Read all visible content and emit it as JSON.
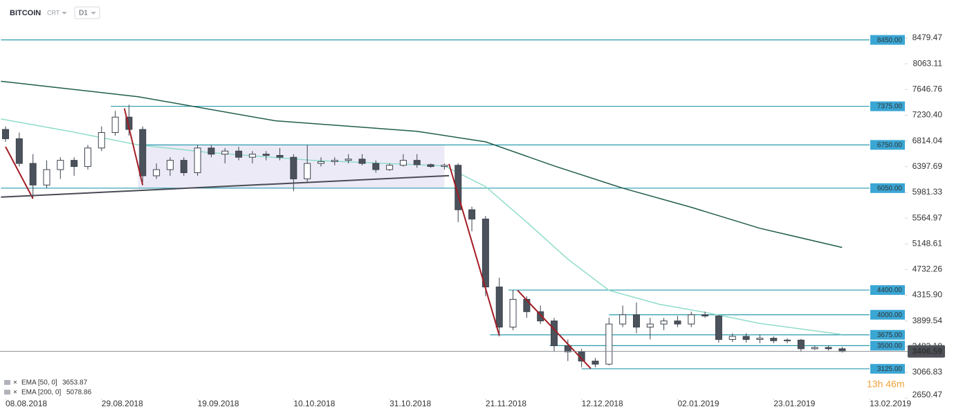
{
  "chart_data": {
    "type": "candlestick",
    "title": "BITCOIN",
    "chart_style": "CRT",
    "interval": "D1",
    "countdown": "13h 46m",
    "grid": false,
    "xlim": [
      "07.08.2018",
      "13.02.2019"
    ],
    "xticks": [
      "08.08.2018",
      "29.08.2018",
      "19.09.2018",
      "10.10.2018",
      "31.10.2018",
      "21.11.2018",
      "12.12.2018",
      "02.01.2019",
      "23.01.2019",
      "13.02.2019"
    ],
    "ylim": [
      2641,
      9096
    ],
    "yticks": [
      8479.47,
      8063.11,
      7646.76,
      {
        "value": 7230.4,
        "label": "7230.40"
      },
      6814.04,
      6397.69,
      5981.33,
      5564.97,
      5148.61,
      4732.26,
      {
        "value": 4315.9,
        "label": "4315.90"
      },
      3899.54,
      3483.18,
      3066.83,
      2650.47
    ],
    "up_color": "#ffffff",
    "down_color": "#4b525b",
    "outline_color": "#3c434d",
    "candles": {
      "x": [
        "08.08.2018",
        "11.08.2018",
        "14.08.2018",
        "17.08.2018",
        "20.08.2018",
        "23.08.2018",
        "26.08.2018",
        "29.08.2018",
        "01.09.2018",
        "04.09.2018",
        "07.09.2018",
        "10.09.2018",
        "13.09.2018",
        "16.09.2018",
        "19.09.2018",
        "22.09.2018",
        "25.09.2018",
        "28.09.2018",
        "01.10.2018",
        "04.10.2018",
        "07.10.2018",
        "10.10.2018",
        "13.10.2018",
        "16.10.2018",
        "19.10.2018",
        "22.10.2018",
        "25.10.2018",
        "28.10.2018",
        "31.10.2018",
        "03.11.2018",
        "06.11.2018",
        "09.11.2018",
        "12.11.2018",
        "15.11.2018",
        "18.11.2018",
        "21.11.2018",
        "24.11.2018",
        "27.11.2018",
        "30.11.2018",
        "03.12.2018",
        "06.12.2018",
        "09.12.2018",
        "12.12.2018",
        "15.12.2018",
        "18.12.2018",
        "21.12.2018",
        "24.12.2018",
        "27.12.2018",
        "30.12.2018",
        "02.01.2019",
        "05.01.2019",
        "08.01.2019",
        "11.01.2019",
        "14.01.2019",
        "17.01.2019",
        "20.01.2019",
        "23.01.2019",
        "26.01.2019",
        "29.01.2019",
        "01.02.2019",
        "04.02.2019",
        "07.02.2019"
      ],
      "open": [
        7000,
        6850,
        6450,
        6100,
        6350,
        6500,
        6400,
        6700,
        6950,
        7200,
        7000,
        6250,
        6350,
        6500,
        6300,
        6700,
        6600,
        6650,
        6550,
        6600,
        6580,
        6550,
        6200,
        6450,
        6480,
        6500,
        6520,
        6450,
        6350,
        6420,
        6500,
        6430,
        6400,
        6420,
        5700,
        5550,
        4450,
        3800,
        4250,
        4050,
        3900,
        3500,
        3400,
        3250,
        3200,
        3850,
        4000,
        3800,
        3850,
        3900,
        3850,
        4000,
        3980,
        3600,
        3650,
        3600,
        3620,
        3580,
        3590,
        3450,
        3470,
        3450
      ],
      "high": [
        7050,
        6950,
        6600,
        6500,
        6550,
        6550,
        6750,
        7050,
        7300,
        7400,
        7050,
        6450,
        6550,
        6550,
        6750,
        6750,
        6700,
        6720,
        6650,
        6650,
        6700,
        6600,
        6750,
        6550,
        6550,
        6600,
        6600,
        6500,
        6450,
        6600,
        6600,
        6450,
        6450,
        6450,
        5750,
        5600,
        4600,
        4400,
        4300,
        4150,
        3950,
        3600,
        3450,
        3300,
        3950,
        4150,
        4200,
        3950,
        3950,
        3980,
        4050,
        4050,
        4000,
        3700,
        3700,
        3680,
        3650,
        3620,
        3610,
        3500,
        3500,
        3480
      ],
      "low": [
        6800,
        6400,
        5900,
        6050,
        6200,
        6250,
        6350,
        6650,
        6900,
        6900,
        6150,
        6200,
        6250,
        6250,
        6250,
        6550,
        6450,
        6500,
        6450,
        6500,
        6500,
        6000,
        6150,
        6400,
        6420,
        6450,
        6420,
        6300,
        6330,
        6400,
        6380,
        6380,
        6350,
        5500,
        5350,
        4300,
        3650,
        3750,
        3950,
        3850,
        3400,
        3250,
        3150,
        3150,
        3180,
        3800,
        3700,
        3600,
        3750,
        3800,
        3800,
        3950,
        3550,
        3560,
        3550,
        3540,
        3540,
        3540,
        3400,
        3430,
        3420,
        3390
      ],
      "close": [
        6850,
        6450,
        6100,
        6350,
        6500,
        6400,
        6700,
        6950,
        7200,
        7000,
        6250,
        6350,
        6500,
        6300,
        6700,
        6600,
        6650,
        6550,
        6600,
        6580,
        6550,
        6200,
        6450,
        6480,
        6500,
        6520,
        6450,
        6350,
        6420,
        6500,
        6430,
        6400,
        6420,
        5700,
        5550,
        4450,
        3800,
        4250,
        4050,
        3900,
        3500,
        3400,
        3250,
        3200,
        3850,
        4000,
        3800,
        3850,
        3900,
        3850,
        4000,
        3980,
        3600,
        3650,
        3600,
        3620,
        3580,
        3590,
        3450,
        3470,
        3450,
        3406.59
      ]
    },
    "series": [
      {
        "name": "EMA [50, 0]",
        "legend_value": 3653.87,
        "color": "#8fdcca",
        "x": [
          "07.08.2018",
          "22.08.2018",
          "06.09.2018",
          "21.09.2018",
          "14.10.2018",
          "12.11.2018",
          "21.11.2018",
          "30.11.2018",
          "09.12.2018",
          "18.12.2018",
          "29.12.2018",
          "08.01.2019",
          "20.01.2019",
          "07.02.2019"
        ],
        "values": [
          7170,
          6970,
          6750,
          6630,
          6500,
          6410,
          6075,
          5500,
          4900,
          4395,
          4170,
          4040,
          3860,
          3680
        ]
      },
      {
        "name": "EMA [200, 0]",
        "legend_value": 5078.86,
        "color": "#1f5c4b",
        "x": [
          "07.08.2018",
          "06.09.2018",
          "06.10.2018",
          "06.11.2018",
          "21.11.2018",
          "06.12.2018",
          "21.12.2018",
          "05.01.2019",
          "20.01.2019",
          "07.02.2019"
        ],
        "values": [
          7780,
          7530,
          7140,
          6970,
          6800,
          6410,
          6050,
          5740,
          5400,
          5090
        ]
      }
    ],
    "levels": [
      {
        "value": 8450,
        "label": "8450.00",
        "from": "07.08.2018"
      },
      {
        "value": 7375,
        "label": "7375.00",
        "from": "31.08.2018"
      },
      {
        "value": 6750,
        "label": "6750.00",
        "from": "06.09.2018"
      },
      {
        "value": 6050,
        "label": "6050.00",
        "from": "07.08.2018"
      },
      {
        "value": 4400,
        "label": "4400.00",
        "from": "26.11.2018"
      },
      {
        "value": 4000,
        "label": "4000.00",
        "from": "18.12.2018"
      },
      {
        "value": 3675,
        "label": "3675.00",
        "from": "22.11.2018"
      },
      {
        "value": 3500,
        "label": "3500.00",
        "from": "05.12.2018"
      },
      {
        "value": 3125,
        "label": "3125.00",
        "from": "12.12.2018"
      }
    ],
    "level_color": "#2a9aae",
    "level_label_color": "#3aa6d4",
    "last_price": 3406.59,
    "zone": {
      "from": "06.09.2018",
      "to": "12.11.2018",
      "top": 6750,
      "bottom": 6050,
      "color": "#eceaf7"
    },
    "trend_lines": [
      {
        "color": "#a31c24",
        "points": [
          [
            "08.08.2018",
            6720
          ],
          [
            "14.08.2018",
            5880
          ]
        ]
      },
      {
        "color": "#a31c24",
        "points": [
          [
            "03.09.2018",
            7340
          ],
          [
            "07.09.2018",
            6100
          ]
        ]
      },
      {
        "color": "#a31c24",
        "points": [
          [
            "13.11.2018",
            6443
          ],
          [
            "24.11.2018",
            3667
          ]
        ]
      },
      {
        "color": "#a31c24",
        "points": [
          [
            "28.11.2018",
            4395
          ],
          [
            "14.12.2018",
            3130
          ]
        ]
      },
      {
        "color": "#4a4a55",
        "points": [
          [
            "07.08.2018",
            5905
          ],
          [
            "13.11.2018",
            6252
          ]
        ]
      }
    ]
  }
}
